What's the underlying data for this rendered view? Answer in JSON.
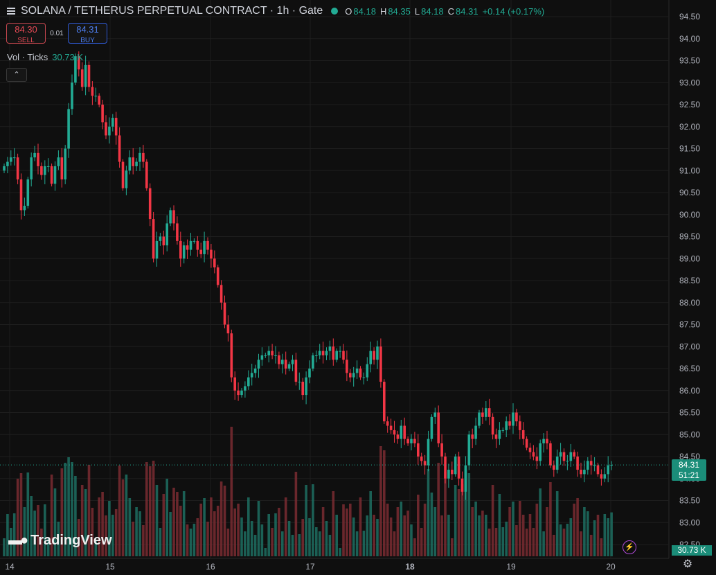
{
  "header": {
    "title": "SOLANA / TETHERUS PERPETUAL CONTRACT · 1h · Gate",
    "ohlc": [
      {
        "k": "O",
        "v": "84.18"
      },
      {
        "k": "H",
        "v": "84.35"
      },
      {
        "k": "L",
        "v": "84.18"
      },
      {
        "k": "C",
        "v": "84.31"
      }
    ],
    "change": "+0.14 (+0.17%)"
  },
  "trade": {
    "sell_price": "84.30",
    "sell_label": "SELL",
    "spread": "0.01",
    "buy_price": "84.31",
    "buy_label": "BUY"
  },
  "volume_legend": {
    "label": "Vol · Ticks",
    "value": "30.73 K"
  },
  "collapse_icon": "chevron-up-icon",
  "brand": "TradingView",
  "last_price": {
    "price": "84.31",
    "countdown": "51:21"
  },
  "last_volume": "30.73 K",
  "colors": {
    "up": "#22ab94",
    "down": "#f23645",
    "background": "#0f0f0f",
    "grid": "#1e1e1e"
  },
  "chart_data": {
    "type": "candlestick",
    "y_ticks": [
      "94.50",
      "94.00",
      "93.50",
      "93.00",
      "92.50",
      "92.00",
      "91.50",
      "91.00",
      "90.50",
      "90.00",
      "89.50",
      "89.00",
      "88.50",
      "88.00",
      "87.50",
      "87.00",
      "86.50",
      "86.00",
      "85.50",
      "85.00",
      "84.50",
      "84.00",
      "83.50",
      "83.00",
      "82.50"
    ],
    "x_ticks": [
      "14",
      "15",
      "16",
      "17",
      "18",
      "19",
      "20"
    ],
    "ylim": [
      82.5,
      94.5
    ],
    "closes": [
      91.1,
      91.2,
      91.3,
      91.3,
      90.8,
      90.1,
      90.2,
      90.8,
      91.3,
      91.4,
      91.1,
      90.9,
      91.1,
      91.1,
      90.7,
      91.1,
      91.3,
      90.8,
      91.5,
      92.4,
      93.0,
      93.6,
      93.3,
      92.9,
      93.4,
      92.9,
      92.7,
      92.7,
      92.5,
      92.1,
      91.8,
      92.0,
      92.2,
      91.8,
      91.2,
      90.6,
      91.0,
      91.3,
      91.1,
      91.2,
      91.4,
      91.2,
      90.6,
      89.9,
      89.0,
      89.4,
      89.5,
      89.3,
      89.8,
      90.1,
      89.8,
      89.4,
      89.0,
      89.3,
      89.2,
      89.4,
      89.4,
      89.2,
      89.1,
      89.4,
      89.2,
      89.0,
      88.8,
      88.4,
      88.0,
      87.5,
      87.3,
      86.3,
      86.0,
      85.9,
      86.0,
      86.1,
      86.3,
      86.4,
      86.5,
      86.7,
      86.8,
      86.8,
      86.9,
      86.8,
      86.8,
      86.6,
      86.7,
      86.5,
      86.6,
      86.7,
      86.2,
      86.2,
      85.9,
      86.3,
      86.5,
      86.8,
      86.8,
      86.9,
      86.8,
      86.9,
      87.0,
      86.7,
      86.9,
      86.9,
      86.7,
      86.4,
      86.3,
      86.4,
      86.5,
      86.3,
      86.3,
      86.6,
      86.9,
      86.7,
      87.0,
      86.2,
      85.3,
      85.2,
      85.1,
      85.0,
      84.9,
      85.2,
      84.9,
      84.8,
      84.9,
      84.8,
      84.5,
      84.4,
      84.3,
      84.9,
      85.4,
      85.5,
      84.8,
      84.5,
      84.0,
      84.2,
      84.1,
      84.5,
      84.0,
      83.7,
      84.3,
      85.0,
      84.9,
      85.2,
      85.5,
      85.4,
      85.6,
      85.4,
      85.0,
      84.9,
      85.1,
      85.1,
      85.3,
      85.2,
      85.5,
      85.3,
      85.1,
      84.9,
      84.7,
      84.6,
      84.5,
      84.4,
      84.8,
      84.9,
      84.8,
      84.3,
      84.2,
      84.5,
      84.6,
      84.4,
      84.4,
      84.6,
      84.5,
      84.2,
      84.1,
      84.2,
      84.4,
      84.3,
      84.3,
      84.1,
      84.0,
      84.1,
      84.3,
      84.31
    ]
  }
}
